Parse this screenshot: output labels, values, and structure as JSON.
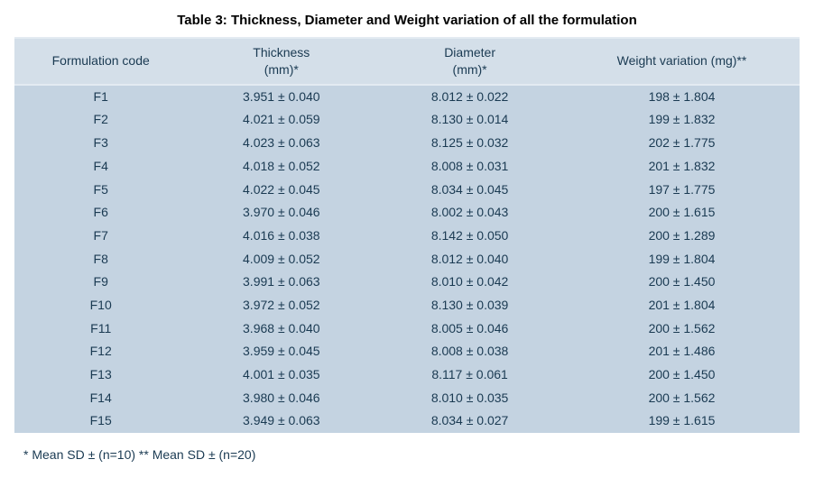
{
  "title": "Table 3: Thickness, Diameter and Weight variation of all the formulation",
  "columns": [
    {
      "line1": "Formulation code",
      "line2": ""
    },
    {
      "line1": "Thickness",
      "line2": "(mm)*"
    },
    {
      "line1": "Diameter",
      "line2": "(mm)*"
    },
    {
      "line1": "Weight variation (mg)**",
      "line2": ""
    }
  ],
  "rows": [
    [
      "F1",
      "3.951 ± 0.040",
      "8.012 ± 0.022",
      "198 ± 1.804"
    ],
    [
      "F2",
      "4.021 ± 0.059",
      "8.130 ± 0.014",
      "199 ± 1.832"
    ],
    [
      "F3",
      "4.023 ± 0.063",
      "8.125 ± 0.032",
      "202 ± 1.775"
    ],
    [
      "F4",
      "4.018 ± 0.052",
      "8.008 ± 0.031",
      "201 ± 1.832"
    ],
    [
      "F5",
      "4.022 ± 0.045",
      "8.034 ± 0.045",
      "197 ± 1.775"
    ],
    [
      "F6",
      "3.970 ± 0.046",
      "8.002 ± 0.043",
      "200 ± 1.615"
    ],
    [
      "F7",
      "4.016 ± 0.038",
      "8.142 ± 0.050",
      "200 ± 1.289"
    ],
    [
      "F8",
      "4.009 ± 0.052",
      "8.012 ± 0.040",
      "199 ± 1.804"
    ],
    [
      "F9",
      "3.991 ± 0.063",
      "8.010 ± 0.042",
      "200 ± 1.450"
    ],
    [
      "F10",
      "3.972 ± 0.052",
      "8.130 ± 0.039",
      "201 ± 1.804"
    ],
    [
      "F11",
      "3.968 ± 0.040",
      "8.005 ± 0.046",
      "200 ± 1.562"
    ],
    [
      "F12",
      "3.959 ± 0.045",
      "8.008 ± 0.038",
      "201 ± 1.486"
    ],
    [
      "F13",
      "4.001 ± 0.035",
      "8.117 ± 0.061",
      "200 ± 1.450"
    ],
    [
      "F14",
      "3.980 ± 0.046",
      "8.010 ± 0.035",
      "200 ± 1.562"
    ],
    [
      "F15",
      "3.949 ± 0.063",
      "8.034 ± 0.027",
      "199 ± 1.615"
    ]
  ],
  "footnote": "* Mean SD ± (n=10) ** Mean SD ± (n=20)",
  "style": {
    "header_bg": "#d4dfe9",
    "body_bg": "#c4d3e1",
    "border_color": "#e3ebf2",
    "text_color": "#1a3a52",
    "title_color": "#000000",
    "title_fontsize": 15,
    "cell_fontsize": 14,
    "col_widths_pct": [
      22,
      24,
      24,
      30
    ]
  }
}
